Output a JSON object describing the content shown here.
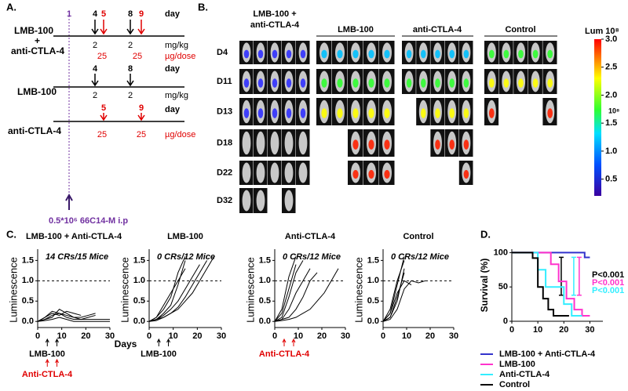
{
  "panels": {
    "a": {
      "label": "A.",
      "combo_name1": "LMB-100",
      "combo_plus": "+",
      "combo_name2": "anti-CTLA-4",
      "combo_days": [
        1,
        4,
        5,
        8,
        9
      ],
      "day": "day",
      "combo_lmb_doses": [
        2,
        2
      ],
      "mg_unit": "mg/kg",
      "combo_ab_doses": [
        25,
        25
      ],
      "ug_unit": "µg/dose",
      "lmb_days": [
        4,
        8
      ],
      "lmb_name": "LMB-100",
      "lmb_doses": [
        2,
        2
      ],
      "ab_days": [
        5,
        9
      ],
      "ab_name": "anti-CTLA-4",
      "ab_doses": [
        25,
        25
      ],
      "injection": "0.5*10⁶ 66C14-M i.p"
    },
    "b": {
      "label": "B.",
      "groups": [
        "LMB-100 + anti-CTLA-4",
        "LMB-100",
        "anti-CTLA-4",
        "Control"
      ],
      "days": [
        "D4",
        "D11",
        "D13",
        "D18",
        "D22",
        "D32"
      ],
      "colorbar_title": "Lum 10⁸",
      "colorbar_unit": "10⁸",
      "colorbar_lim": [
        0.2,
        3.0
      ],
      "colorbar_ticks": [
        {
          "value": 3,
          "label": "3.0"
        },
        2.5,
        {
          "value": 2,
          "label": "2.0"
        },
        1.5,
        {
          "value": 1,
          "label": "1.0"
        },
        0.5
      ]
    },
    "c_label": "C.",
    "d_label": "D."
  },
  "chart_data": [
    {
      "type": "line",
      "title": "LMB-100 + Anti-CTLA-4",
      "annotation": "14 CRs/15 Mice",
      "y_label": "Luminescence",
      "x_label": "Days",
      "treatments": [
        {
          "text": "LMB-100",
          "color": "#000000"
        },
        {
          "text": "Anti-CTLA-4",
          "color": "#e00000"
        }
      ],
      "xlim": [
        0,
        30
      ],
      "xticks": [
        0,
        10,
        20,
        30
      ],
      "ylim": [
        -0.15,
        1.7
      ],
      "yticks": [
        {
          "value": 0,
          "label": "0.0"
        },
        0.5,
        {
          "value": 1,
          "label": "1.0"
        },
        1.5
      ],
      "reference_line": 1,
      "x": [
        0,
        3,
        6,
        9,
        12,
        15,
        18,
        21,
        24,
        27,
        30
      ],
      "series": [
        {
          "color": "#000000",
          "values": [
            0,
            0.05,
            0.15,
            0.2,
            0.1,
            0.05,
            0.05,
            0.1,
            0.15,
            null,
            null
          ]
        },
        {
          "color": "#000000",
          "values": [
            0,
            0.1,
            0.25,
            0.2,
            0.15,
            0.1,
            0.05,
            0.05,
            0.05,
            0.05,
            0.05
          ]
        },
        {
          "color": "#000000",
          "values": [
            0,
            0.05,
            0.1,
            0.3,
            0.2,
            0.1,
            0.1,
            0.15,
            0.2,
            null,
            null
          ]
        },
        {
          "color": "#000000",
          "values": [
            0,
            0.02,
            0.05,
            0.1,
            0.05,
            0,
            0,
            0,
            0,
            0,
            0
          ]
        },
        {
          "color": "#000000",
          "values": [
            0,
            0.1,
            0.2,
            0.15,
            0.25,
            0.2,
            0.15,
            null,
            null,
            null,
            null
          ]
        }
      ]
    },
    {
      "type": "line",
      "title": "LMB-100",
      "annotation": "0 CRs/12 Mice",
      "y_label": "Luminescence",
      "treatments": [
        {
          "text": "LMB-100",
          "color": "#000000"
        }
      ],
      "xlim": [
        0,
        30
      ],
      "xticks": [
        0,
        10,
        20,
        30
      ],
      "ylim": [
        -0.15,
        1.7
      ],
      "yticks": [
        {
          "value": 0,
          "label": "0.0"
        },
        0.5,
        {
          "value": 1,
          "label": "1.0"
        },
        1.5
      ],
      "reference_line": 1,
      "x": [
        0,
        3,
        6,
        9,
        12,
        15,
        18,
        21,
        24,
        27,
        30
      ],
      "series": [
        {
          "color": "#000000",
          "values": [
            0,
            0.05,
            0.2,
            0.4,
            0.9,
            1.5,
            null,
            null,
            null,
            null,
            null
          ]
        },
        {
          "color": "#000000",
          "values": [
            0,
            0.1,
            0.3,
            0.6,
            1.2,
            1.6,
            null,
            null,
            null,
            null,
            null
          ]
        },
        {
          "color": "#000000",
          "values": [
            0,
            0.05,
            0.15,
            0.3,
            0.5,
            0.8,
            1.1,
            1.4,
            null,
            null,
            null
          ]
        },
        {
          "color": "#000000",
          "values": [
            0,
            0.02,
            0.1,
            0.2,
            0.35,
            0.6,
            0.9,
            1.2,
            1.5,
            null,
            null
          ]
        },
        {
          "color": "#000000",
          "values": [
            0,
            0.05,
            0.1,
            0.2,
            0.3,
            0.5,
            0.7,
            1.0,
            1.3,
            1.6,
            null
          ]
        },
        {
          "color": "#000000",
          "values": [
            0,
            0.1,
            0.4,
            0.7,
            1.0,
            1.3,
            null,
            null,
            null,
            null,
            null
          ]
        }
      ]
    },
    {
      "type": "line",
      "title": "Anti-CTLA-4",
      "annotation": "0 CRs/12 Mice",
      "y_label": "Luminescence",
      "treatments": [
        {
          "text": "Anti-CTLA-4",
          "color": "#e00000"
        }
      ],
      "xlim": [
        0,
        30
      ],
      "xticks": [
        0,
        10,
        20,
        30
      ],
      "ylim": [
        -0.15,
        1.7
      ],
      "yticks": [
        {
          "value": 0,
          "label": "0.0"
        },
        0.5,
        {
          "value": 1,
          "label": "1.0"
        },
        1.5
      ],
      "reference_line": 1,
      "x": [
        0,
        3,
        6,
        9,
        12,
        15,
        18,
        21,
        24,
        27,
        30
      ],
      "series": [
        {
          "color": "#000000",
          "values": [
            0,
            0.2,
            0.8,
            1.4,
            null,
            null,
            null,
            null,
            null,
            null,
            null
          ]
        },
        {
          "color": "#000000",
          "values": [
            0,
            0.1,
            0.6,
            1.2,
            1.5,
            null,
            null,
            null,
            null,
            null,
            null
          ]
        },
        {
          "color": "#000000",
          "values": [
            0,
            0.3,
            1.1,
            1.6,
            null,
            null,
            null,
            null,
            null,
            null,
            null
          ]
        },
        {
          "color": "#000000",
          "values": [
            0,
            0.05,
            0.3,
            0.7,
            1.0,
            1.3,
            null,
            null,
            null,
            null,
            null
          ]
        },
        {
          "color": "#000000",
          "values": [
            0,
            0.05,
            0.1,
            0.3,
            0.6,
            1.0,
            1.2,
            null,
            null,
            null,
            null
          ]
        },
        {
          "color": "#000000",
          "values": [
            0,
            0.02,
            0.05,
            0.1,
            0.2,
            0.3,
            0.5,
            0.7,
            1.0,
            1.3,
            null
          ]
        }
      ]
    },
    {
      "type": "line",
      "title": "Control",
      "annotation": "0 CRs/12 Mice",
      "y_label": "Luminescence",
      "treatments": [],
      "xlim": [
        0,
        30
      ],
      "xticks": [
        0,
        10,
        20,
        30
      ],
      "ylim": [
        -0.15,
        1.7
      ],
      "yticks": [
        {
          "value": 0,
          "label": "0.0"
        },
        0.5,
        {
          "value": 1,
          "label": "1.0"
        },
        1.5
      ],
      "reference_line": 1,
      "x": [
        0,
        3,
        6,
        9,
        12,
        15,
        18,
        21,
        24,
        27,
        30
      ],
      "series": [
        {
          "color": "#000000",
          "values": [
            0,
            0.2,
            0.9,
            1.6,
            null,
            null,
            null,
            null,
            null,
            null,
            null
          ]
        },
        {
          "color": "#000000",
          "values": [
            0,
            0.3,
            1.0,
            1.5,
            null,
            null,
            null,
            null,
            null,
            null,
            null
          ]
        },
        {
          "color": "#000000",
          "values": [
            0,
            0.1,
            0.6,
            1.2,
            null,
            null,
            null,
            null,
            null,
            null,
            null
          ]
        },
        {
          "color": "#000000",
          "values": [
            0,
            0.2,
            0.7,
            1.0,
            0.9,
            null,
            null,
            null,
            null,
            null,
            null
          ]
        },
        {
          "color": "#000000",
          "values": [
            0,
            0.05,
            0.3,
            0.8,
            1.0,
            0.95,
            1.0,
            null,
            null,
            null,
            null
          ]
        },
        {
          "color": "#000000",
          "values": [
            0,
            0.1,
            0.5,
            1.3,
            null,
            null,
            null,
            null,
            null,
            null,
            null
          ]
        }
      ]
    },
    {
      "type": "step",
      "y_label": "Survival (%)",
      "xlim": [
        0,
        35
      ],
      "xticks": [
        0,
        10,
        20,
        30
      ],
      "ylim": [
        0,
        105
      ],
      "yticks": [
        0,
        50,
        100
      ],
      "p_values": [
        {
          "text": "P<0.001",
          "color": "#000000"
        },
        {
          "text": "P<0.001",
          "color": "#ff33cc"
        },
        {
          "text": "P<0.001",
          "color": "#33eeff"
        }
      ],
      "series": [
        {
          "name": "LMB-100 + Anti-CTLA-4",
          "color": "#3333cc",
          "x": [
            0,
            28,
            28,
            30
          ],
          "values": [
            100,
            100,
            93,
            93
          ]
        },
        {
          "name": "LMB-100",
          "color": "#ff33cc",
          "x": [
            0,
            15,
            15,
            18,
            18,
            21,
            21,
            24,
            24,
            27,
            27,
            30
          ],
          "values": [
            100,
            100,
            83,
            83,
            58,
            58,
            33,
            33,
            17,
            17,
            8,
            8
          ]
        },
        {
          "name": "Anti-CTLA-4",
          "color": "#33eeff",
          "x": [
            0,
            10,
            10,
            13,
            13,
            20,
            20,
            23,
            23,
            27
          ],
          "values": [
            100,
            100,
            75,
            75,
            50,
            50,
            25,
            25,
            8,
            8
          ]
        },
        {
          "name": "Control",
          "color": "#000000",
          "x": [
            0,
            8,
            8,
            10,
            10,
            12,
            12,
            14,
            14,
            16,
            16,
            22
          ],
          "values": [
            100,
            100,
            92,
            92,
            50,
            50,
            33,
            33,
            17,
            17,
            8,
            8
          ]
        }
      ]
    }
  ]
}
